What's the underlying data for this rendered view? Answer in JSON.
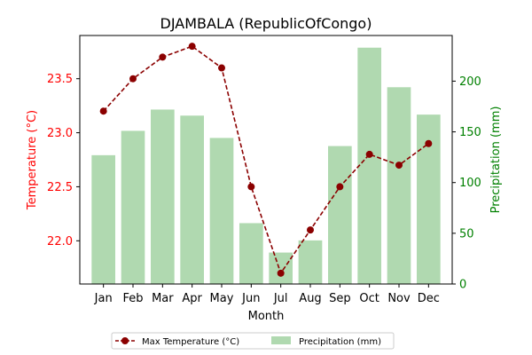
{
  "chart_data": {
    "type": "bar+line",
    "title": "DJAMBALA (RepublicOfCongo)",
    "xlabel": "Month",
    "ylabel_left": "Temperature (°C)",
    "ylabel_right": "Precipitation (mm)",
    "categories": [
      "Jan",
      "Feb",
      "Mar",
      "Apr",
      "May",
      "Jun",
      "Jul",
      "Aug",
      "Sep",
      "Oct",
      "Nov",
      "Dec"
    ],
    "left_ylim": [
      21.6,
      23.9
    ],
    "left_ticks": [
      "22.0",
      "22.5",
      "23.0",
      "23.5"
    ],
    "right_ylim": [
      0,
      245
    ],
    "right_ticks": [
      "0",
      "50",
      "100",
      "150",
      "200"
    ],
    "series": [
      {
        "name": "Max Temperature (°C)",
        "kind": "line",
        "axis": "left",
        "color": "#8b0000",
        "values": [
          23.2,
          23.5,
          23.7,
          23.8,
          23.6,
          22.5,
          21.7,
          22.1,
          22.5,
          22.8,
          22.7,
          22.9
        ]
      },
      {
        "name": "Precipitation (mm)",
        "kind": "bar",
        "axis": "right",
        "color": "#b0d9b0",
        "values": [
          127,
          151,
          172,
          166,
          144,
          60,
          31,
          43,
          136,
          233,
          194,
          167
        ]
      }
    ],
    "left_axis_color": "#ff0000",
    "right_axis_color": "#008000",
    "grid": false,
    "legend_position": "bottom-center"
  }
}
